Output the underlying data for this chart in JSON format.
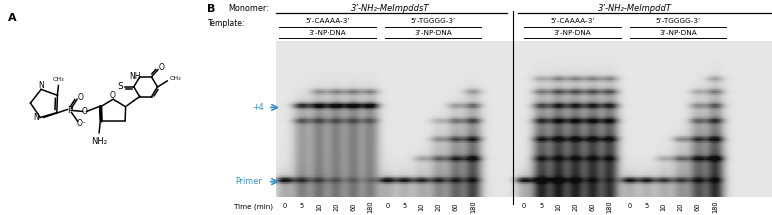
{
  "fig_width": 7.72,
  "fig_height": 2.15,
  "dpi": 100,
  "bg_color": "#ffffff",
  "panel_A_label": "A",
  "panel_B_label": "B",
  "monomer_label": "Monomer:",
  "monomer1": "3’-NH₂-MeImpddsT",
  "monomer2": "3’-NH₂-MelmpddT",
  "template_label": "Template:",
  "templates": [
    "5’-CAAAA-3’",
    "5’-TGGGG-3’",
    "5’-CAAAA-3’",
    "5’-TGGGG-3’"
  ],
  "npdna": "3’-NP·DNA",
  "time_label": "Time (min)",
  "time_points": [
    "0",
    "5",
    "10",
    "20",
    "60",
    "180"
  ],
  "plus4_label": "+4",
  "primer_label": "Primer",
  "arrow_color": "#3a8fc0",
  "label_color": "#000000",
  "gel_light": 0.88,
  "gel_dark": 0.12
}
